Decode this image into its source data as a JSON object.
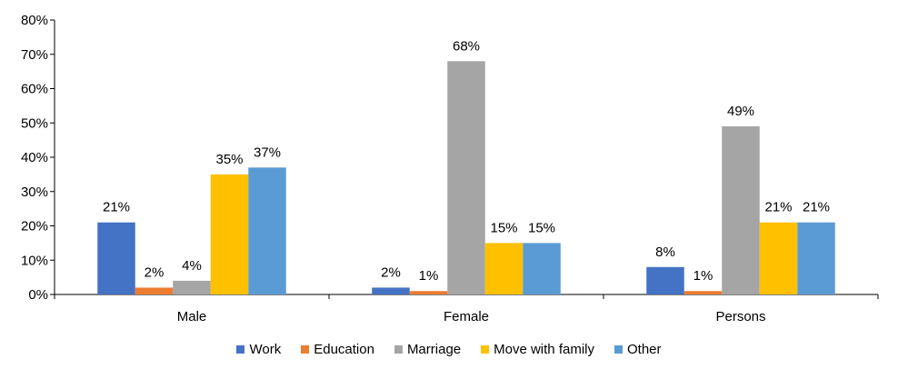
{
  "chart_data": {
    "type": "bar",
    "categories": [
      "Male",
      "Female",
      "Persons"
    ],
    "series": [
      {
        "name": "Work",
        "color": "#4472C4",
        "values": [
          21,
          2,
          8
        ],
        "labels": [
          "21%",
          "2%",
          "8%"
        ]
      },
      {
        "name": "Education",
        "color": "#ED7D31",
        "values": [
          2,
          1,
          1
        ],
        "labels": [
          "2%",
          "1%",
          "1%"
        ]
      },
      {
        "name": "Marriage",
        "color": "#A5A5A5",
        "values": [
          4,
          68,
          49
        ],
        "labels": [
          "4%",
          "68%",
          "49%"
        ]
      },
      {
        "name": "Move with family",
        "color": "#FFC000",
        "values": [
          35,
          15,
          21
        ],
        "labels": [
          "35%",
          "15%",
          "21%"
        ]
      },
      {
        "name": "Other",
        "color": "#5B9BD5",
        "values": [
          37,
          15,
          21
        ],
        "labels": [
          "37%",
          "15%",
          "21%"
        ]
      }
    ],
    "yticks": [
      "0%",
      "10%",
      "20%",
      "30%",
      "40%",
      "50%",
      "60%",
      "70%",
      "80%"
    ],
    "ylim": [
      0,
      80
    ],
    "grid": false,
    "legend_position": "bottom"
  }
}
